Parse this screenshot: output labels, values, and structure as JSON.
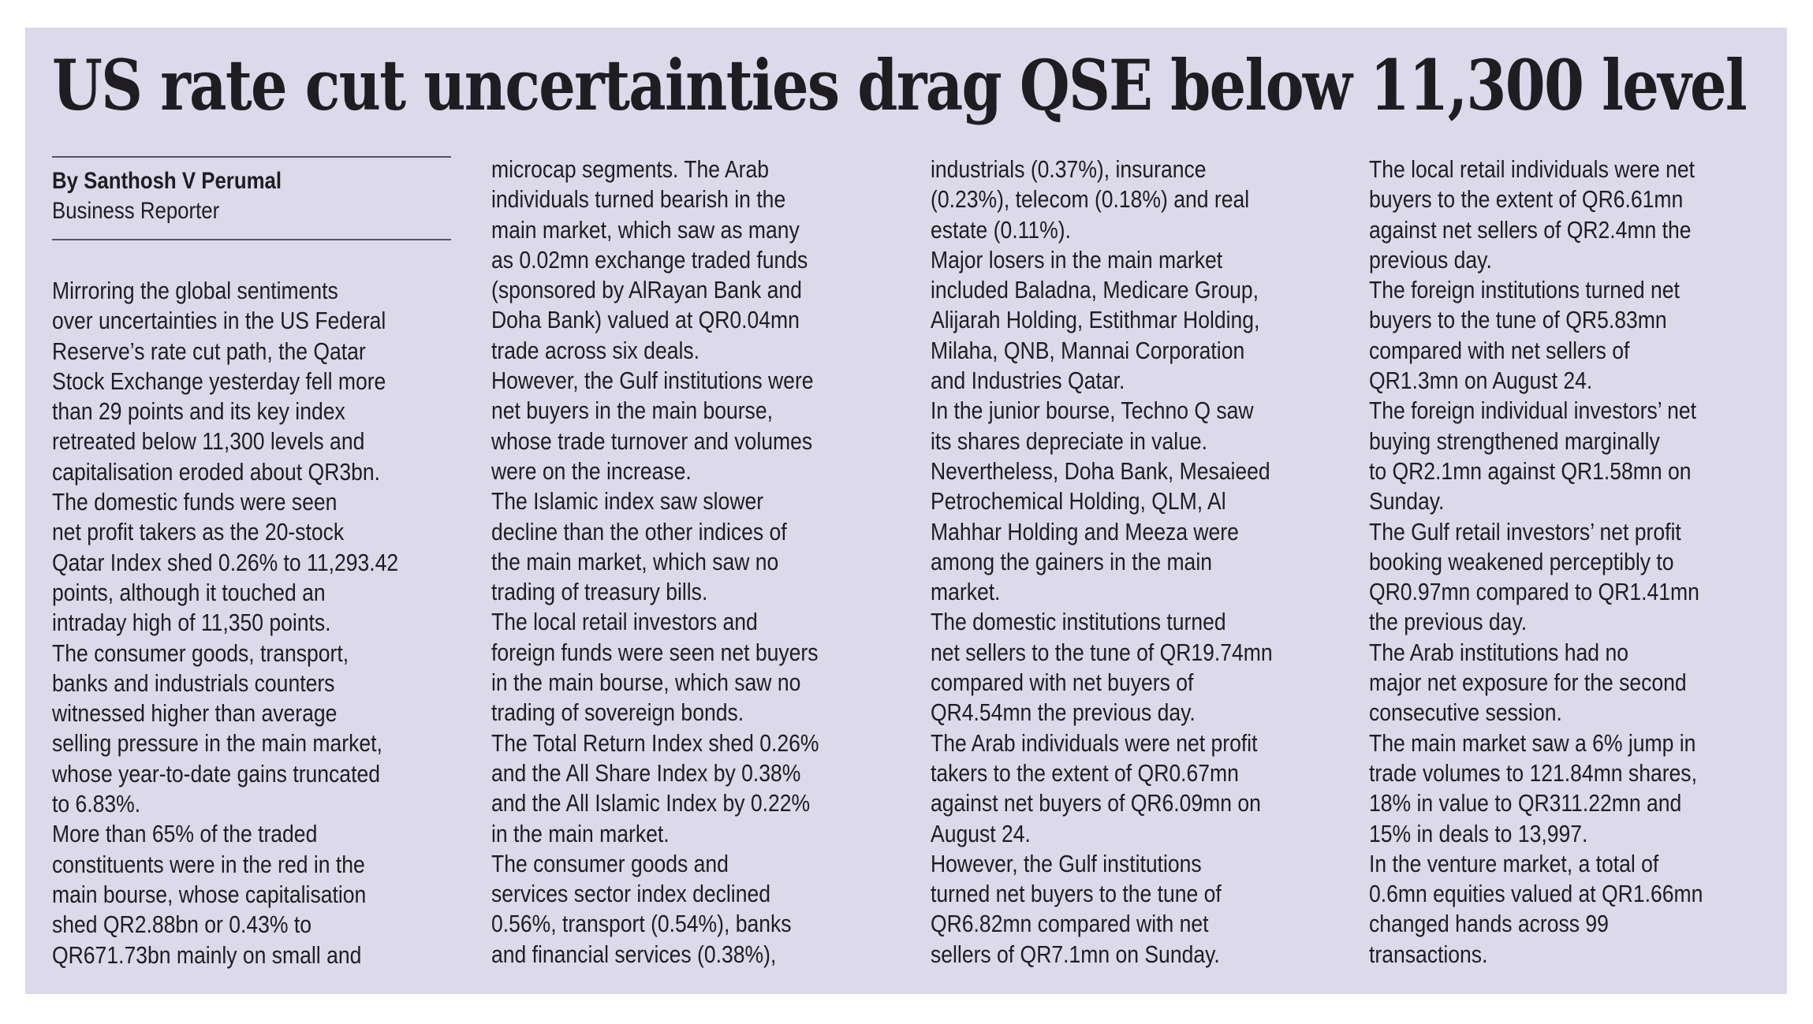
{
  "article": {
    "headline": "US rate cut uncertainties drag QSE below 11,300 level",
    "byline": "By Santhosh V Perumal",
    "role": "Business Reporter",
    "columns": [
      [
        "Mirroring the global sentiments",
        "over uncertainties in the US Federal",
        "Reserve’s rate cut path, the Qatar",
        "Stock Exchange yesterday fell more",
        "than 29 points and its key index",
        "retreated below 11,300 levels and",
        "capitalisation eroded about QR3bn.",
        "The domestic funds were seen",
        "net profit takers as the 20-stock",
        "Qatar Index shed 0.26% to 11,293.42",
        "points, although it touched an",
        "intraday high of 11,350 points.",
        "The consumer goods, transport,",
        "banks and industrials counters",
        "witnessed higher than average",
        "selling pressure in the main market,",
        "whose year-to-date gains truncated",
        "to 6.83%.",
        "More than 65% of the traded",
        "constituents were in the red in the",
        "main bourse, whose capitalisation",
        "shed QR2.88bn or 0.43% to",
        "QR671.73bn mainly on small and"
      ],
      [
        "microcap segments. The Arab",
        "individuals turned bearish in the",
        "main market, which saw as many",
        "as 0.02mn exchange traded funds",
        "(sponsored by AlRayan Bank and",
        "Doha Bank) valued at QR0.04mn",
        "trade across six deals.",
        "However, the Gulf institutions were",
        "net buyers in the main bourse,",
        "whose trade turnover and volumes",
        "were on the increase.",
        "The Islamic index saw slower",
        "decline than the other indices of",
        "the main market, which saw no",
        "trading of treasury bills.",
        "The local retail investors and",
        "foreign funds were seen net buyers",
        "in the main bourse, which saw no",
        "trading of sovereign bonds.",
        "The Total Return Index shed 0.26%",
        "and the All Share Index by 0.38%",
        "and the All Islamic Index by 0.22%",
        "in the main market.",
        "The consumer goods and",
        "services sector index declined",
        "0.56%, transport (0.54%), banks",
        "and financial services (0.38%),"
      ],
      [
        "industrials (0.37%), insurance",
        "(0.23%), telecom (0.18%) and real",
        "estate (0.11%).",
        "Major losers in the main market",
        "included Baladna, Medicare Group,",
        "Alijarah Holding, Estithmar Holding,",
        "Milaha, QNB, Mannai Corporation",
        "and Industries Qatar.",
        "In the junior bourse, Techno Q saw",
        "its shares depreciate in value.",
        "Nevertheless, Doha Bank, Mesaieed",
        "Petrochemical Holding, QLM, Al",
        "Mahhar Holding and Meeza were",
        "among the gainers in the main",
        "market.",
        "The domestic institutions turned",
        "net sellers to the tune of QR19.74mn",
        "compared with net buyers of",
        "QR4.54mn the previous day.",
        "The Arab individuals were net profit",
        "takers to the extent of QR0.67mn",
        "against net buyers of QR6.09mn on",
        "August 24.",
        "However, the Gulf institutions",
        "turned net buyers to the tune of",
        "QR6.82mn compared with net",
        "sellers of QR7.1mn on Sunday."
      ],
      [
        "The local retail individuals were net",
        "buyers to the extent of QR6.61mn",
        "against net sellers of QR2.4mn the",
        "previous day.",
        "The foreign institutions turned net",
        "buyers to the tune of QR5.83mn",
        "compared with net sellers of",
        "QR1.3mn on August 24.",
        "The foreign individual investors’ net",
        "buying strengthened marginally",
        "to QR2.1mn against QR1.58mn on",
        "Sunday.",
        "The Gulf retail investors’ net profit",
        "booking weakened perceptibly to",
        "QR0.97mn compared to QR1.41mn",
        "the previous day.",
        "The Arab institutions had no",
        "major net exposure for the second",
        "consecutive session.",
        "The main market saw a 6% jump in",
        "trade volumes to 121.84mn shares,",
        "18% in value to QR311.22mn and",
        "15% in deals to 13,997.",
        "In the venture market, a total of",
        "0.6mn equities valued at QR1.66mn",
        "changed hands across 99",
        "transactions."
      ]
    ]
  }
}
